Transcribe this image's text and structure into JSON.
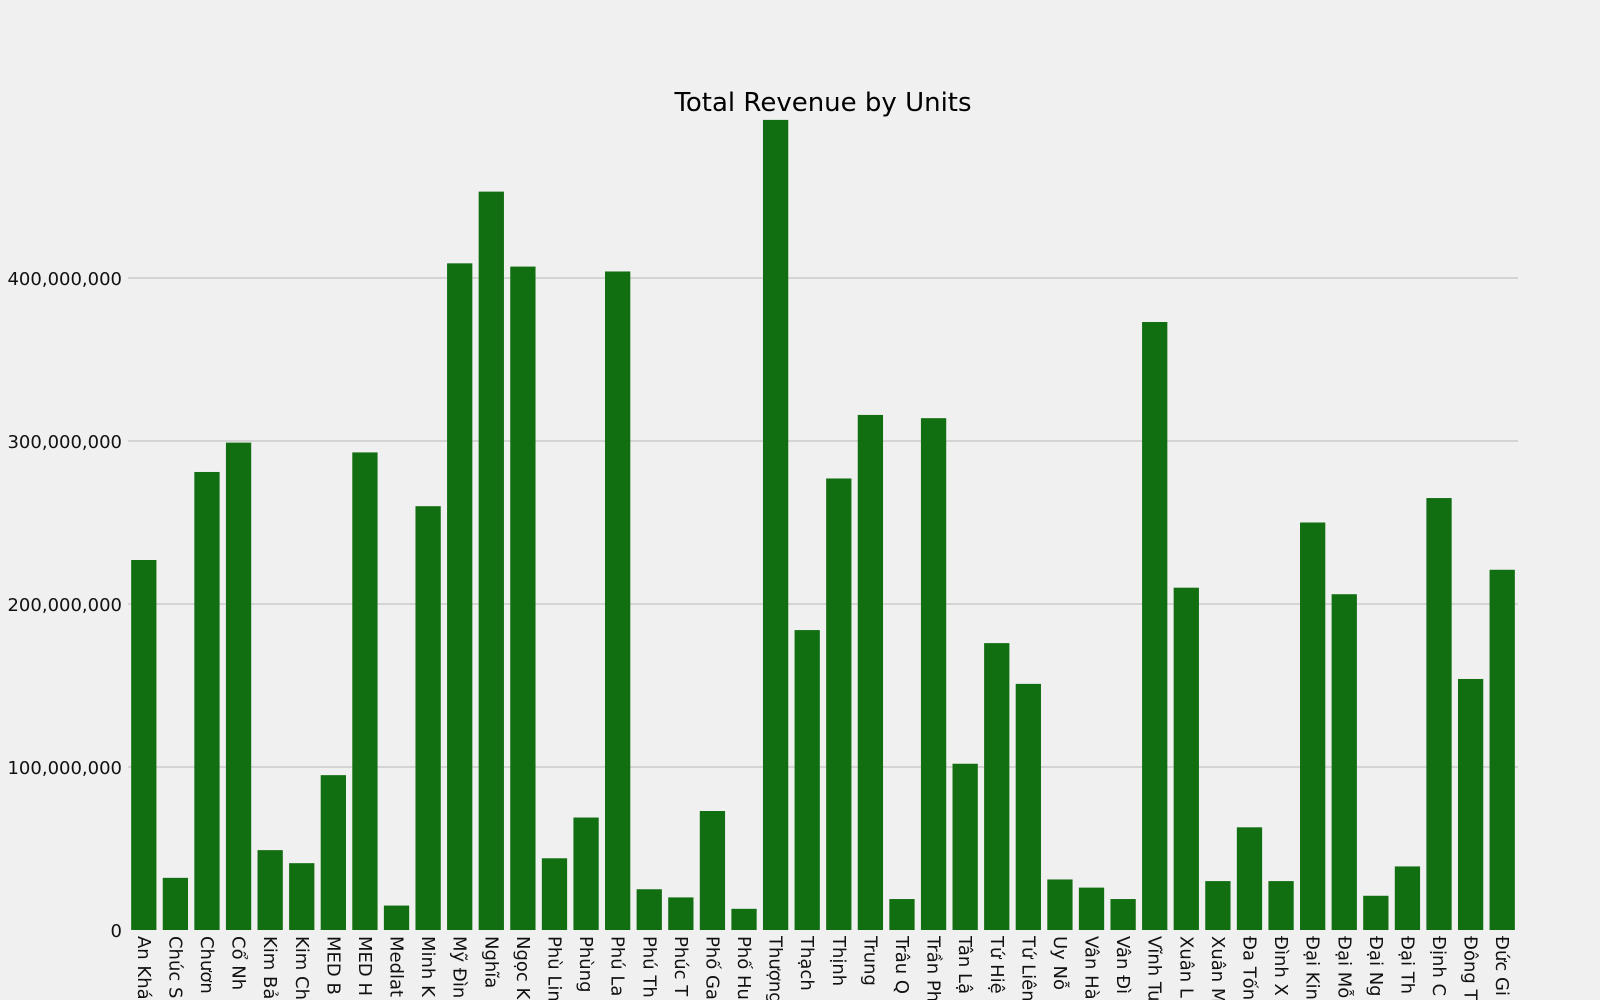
{
  "chart_data": {
    "type": "bar",
    "title": "Total Revenue by Units",
    "xlabel": "",
    "ylabel": "",
    "ylim": [
      0,
      500000000
    ],
    "yticks": [
      0,
      100000000,
      200000000,
      300000000,
      400000000
    ],
    "ytick_labels": [
      "0",
      "100,000,000",
      "200,000,000",
      "300,000,000",
      "400,000,000"
    ],
    "grid": true,
    "bar_color": "#116e11",
    "background_color": "#f0f0f0",
    "grid_color": "#cbcbcb",
    "categories": [
      "An Khá",
      "Chúc S",
      "Chươn",
      "Cổ Nh",
      "Kim Bả",
      "Kim Ch",
      "MED B",
      "MED H",
      "Medlat",
      "Minh K",
      "Mỹ Đìn",
      "Nghĩa",
      "Ngọc K",
      "Phù Lin",
      "Phùng",
      "Phú La",
      "Phú Th",
      "Phúc T",
      "Phố Ga",
      "Phố Hu",
      "Thượng",
      "Thạch",
      "Thịnh",
      "Trung",
      "Trâu Q",
      "Trần Ph",
      "Tân Lậ",
      "Tứ Hiệ",
      "Tứ Liên",
      "Uy Nỗ",
      "Vân Hà",
      "Vân Đì",
      "Vĩnh Tu",
      "Xuân L",
      "Xuân M",
      "Đa Tốn",
      "Đình X",
      "Đại Kin",
      "Đại Mỗ",
      "Đại Ng",
      "Đại Th",
      "Định C",
      "Đông T",
      "Đức Gi"
    ],
    "values": [
      227000000,
      32000000,
      281000000,
      299000000,
      49000000,
      41000000,
      95000000,
      293000000,
      15000000,
      260000000,
      409000000,
      453000000,
      407000000,
      44000000,
      69000000,
      404000000,
      25000000,
      20000000,
      73000000,
      13000000,
      497000000,
      184000000,
      277000000,
      316000000,
      19000000,
      314000000,
      102000000,
      176000000,
      151000000,
      31000000,
      26000000,
      19000000,
      373000000,
      210000000,
      30000000,
      63000000,
      30000000,
      250000000,
      206000000,
      21000000,
      39000000,
      265000000,
      154000000,
      221000000
    ]
  }
}
